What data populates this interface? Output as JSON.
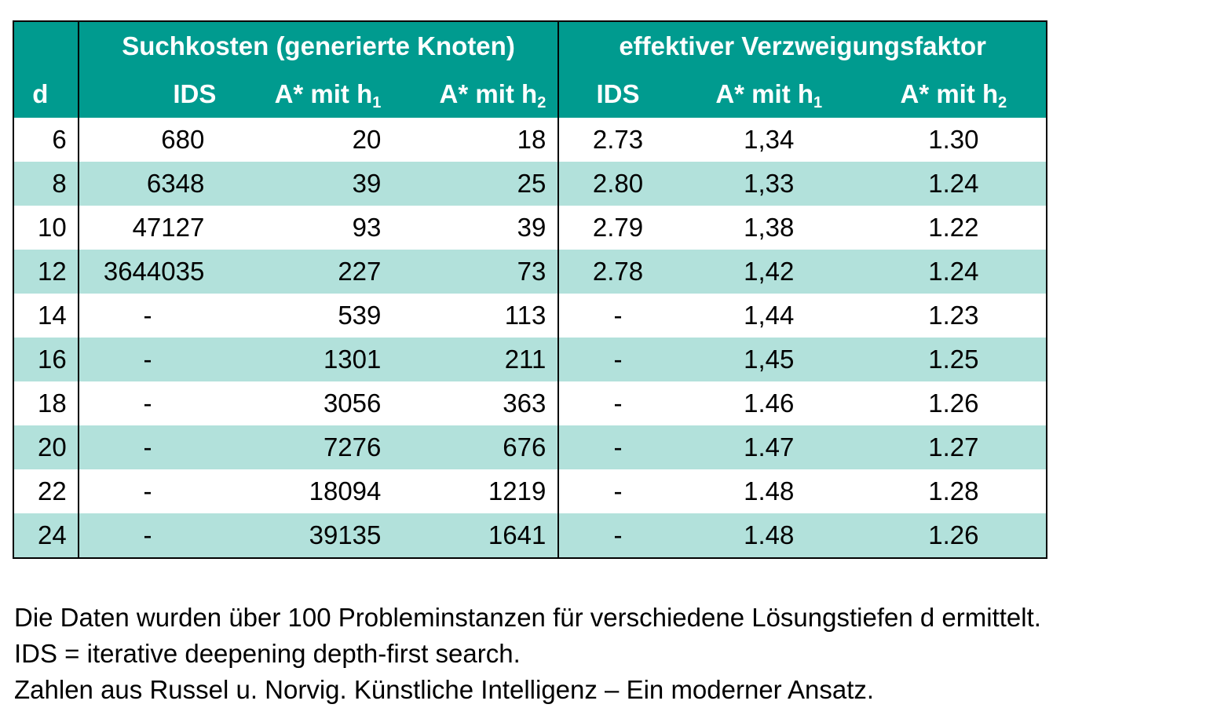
{
  "table": {
    "header_top": {
      "d_placeholder": "",
      "group1": "Suchkosten (generierte Knoten)",
      "group2": "effektiver Verzweigungsfaktor"
    },
    "header_sub": {
      "d": "d",
      "ids1": "IDS",
      "astar_h1_1": "A* mit h",
      "astar_h1_1_sub": "1",
      "astar_h2_1": "A* mit h",
      "astar_h2_1_sub": "2",
      "ids2": "IDS",
      "astar_h1_2": "A* mit h",
      "astar_h1_2_sub": "1",
      "astar_h2_2": "A* mit h",
      "astar_h2_2_sub": "2"
    },
    "rows": [
      {
        "d": "6",
        "ids": "680",
        "a1": "20",
        "a2": "18",
        "bids": "2.73",
        "b1": "1,34",
        "b2": "1.30"
      },
      {
        "d": "8",
        "ids": "6348",
        "a1": "39",
        "a2": "25",
        "bids": "2.80",
        "b1": "1,33",
        "b2": "1.24"
      },
      {
        "d": "10",
        "ids": "47127",
        "a1": "93",
        "a2": "39",
        "bids": "2.79",
        "b1": "1,38",
        "b2": "1.22"
      },
      {
        "d": "12",
        "ids": "3644035",
        "a1": "227",
        "a2": "73",
        "bids": "2.78",
        "b1": "1,42",
        "b2": "1.24"
      },
      {
        "d": "14",
        "ids": "-",
        "a1": "539",
        "a2": "113",
        "bids": "-",
        "b1": "1,44",
        "b2": "1.23"
      },
      {
        "d": "16",
        "ids": "-",
        "a1": "1301",
        "a2": "211",
        "bids": "-",
        "b1": "1,45",
        "b2": "1.25"
      },
      {
        "d": "18",
        "ids": "-",
        "a1": "3056",
        "a2": "363",
        "bids": "-",
        "b1": "1.46",
        "b2": "1.26"
      },
      {
        "d": "20",
        "ids": "-",
        "a1": "7276",
        "a2": "676",
        "bids": "-",
        "b1": "1.47",
        "b2": "1.27"
      },
      {
        "d": "22",
        "ids": "-",
        "a1": "18094",
        "a2": "1219",
        "bids": "-",
        "b1": "1.48",
        "b2": "1.28"
      },
      {
        "d": "24",
        "ids": "-",
        "a1": "39135",
        "a2": "1641",
        "bids": "-",
        "b1": "1.48",
        "b2": "1.26"
      }
    ]
  },
  "notes": [
    "Die Daten wurden über 100 Probleminstanzen für verschiedene Lösungstiefen d ermittelt.",
    "IDS = iterative deepening depth-first search.",
    "Zahlen aus Russel u. Norvig. Künstliche Intelligenz – Ein moderner Ansatz."
  ],
  "colors": {
    "header_bg": "#009b8f",
    "stripe_bg": "#b2e1db",
    "border": "#000000"
  }
}
